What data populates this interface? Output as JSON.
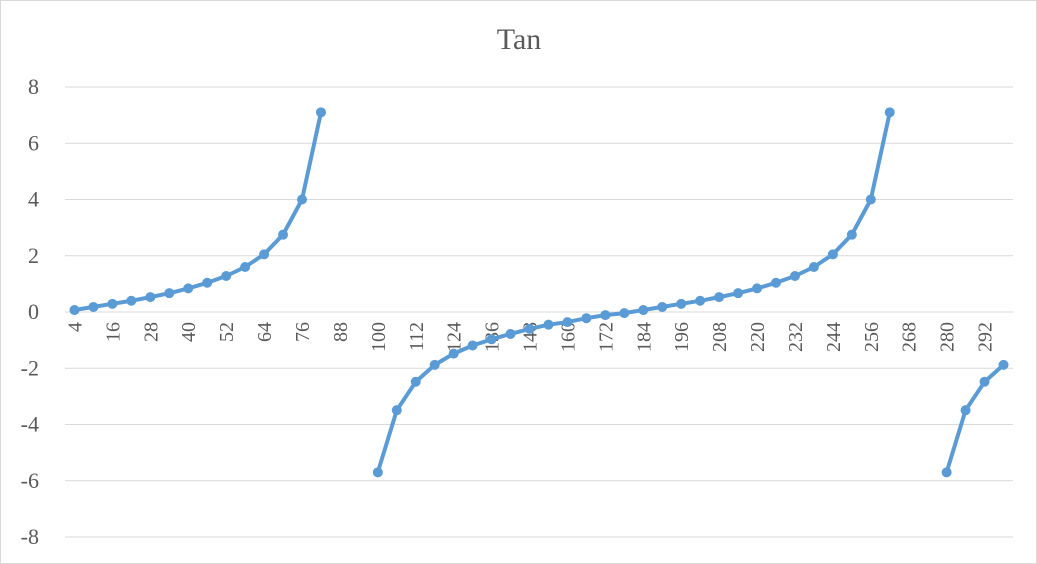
{
  "chart_data": {
    "type": "line",
    "title": "Tan",
    "xlabel": "",
    "ylabel": "",
    "ylim": [
      -8,
      8
    ],
    "y_ticks": [
      "-8",
      "-6",
      "-4",
      "-2",
      "0",
      "2",
      "4",
      "6",
      "8"
    ],
    "grid": true,
    "legend": "none",
    "x": [
      4,
      10,
      16,
      22,
      28,
      34,
      40,
      46,
      52,
      58,
      64,
      70,
      76,
      82,
      88,
      94,
      100,
      106,
      112,
      118,
      124,
      130,
      136,
      142,
      148,
      154,
      160,
      166,
      172,
      178,
      184,
      190,
      196,
      202,
      208,
      214,
      220,
      226,
      232,
      238,
      244,
      250,
      256,
      262,
      268,
      274,
      280,
      286,
      292,
      298
    ],
    "x_tick_labels": [
      "4",
      "16",
      "28",
      "40",
      "52",
      "64",
      "76",
      "88",
      "100",
      "112",
      "124",
      "136",
      "148",
      "160",
      "172",
      "184",
      "196",
      "208",
      "220",
      "232",
      "244",
      "256",
      "268",
      "280",
      "292"
    ],
    "series": [
      {
        "color": "#5b9bd5",
        "values": [
          0.07,
          0.18,
          0.29,
          0.4,
          0.53,
          0.67,
          0.84,
          1.04,
          1.28,
          1.6,
          2.05,
          2.75,
          4.0,
          7.1,
          null,
          null,
          -5.7,
          -3.49,
          -2.48,
          -1.88,
          -1.48,
          -1.19,
          -0.97,
          -0.78,
          -0.6,
          -0.45,
          -0.36,
          -0.22,
          -0.11,
          -0.04,
          0.07,
          0.18,
          0.29,
          0.4,
          0.53,
          0.67,
          0.84,
          1.04,
          1.28,
          1.6,
          2.05,
          2.75,
          4.0,
          7.1,
          null,
          null,
          -5.7,
          -3.49,
          -2.48,
          -1.88
        ]
      }
    ]
  }
}
